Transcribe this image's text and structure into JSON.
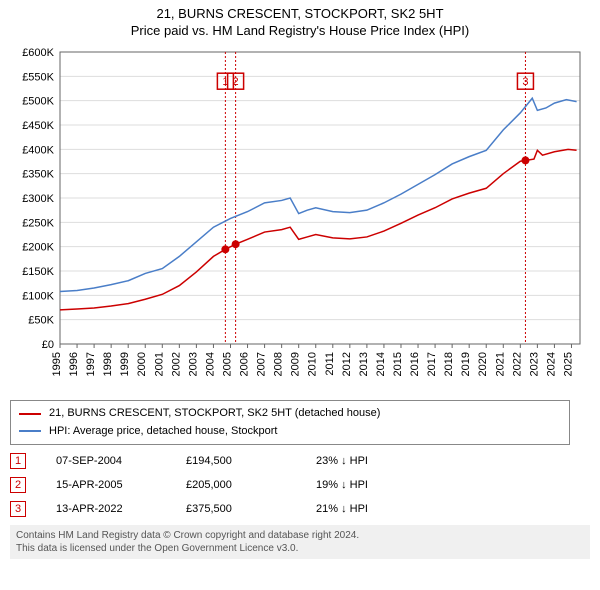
{
  "title_line1": "21, BURNS CRESCENT, STOCKPORT, SK2 5HT",
  "title_line2": "Price paid vs. HM Land Registry's House Price Index (HPI)",
  "chart": {
    "type": "line",
    "background_color": "#ffffff",
    "grid_color": "#dddddd",
    "axis_color": "#666666",
    "x_years": [
      1995,
      1996,
      1997,
      1998,
      1999,
      2000,
      2001,
      2002,
      2003,
      2004,
      2005,
      2006,
      2007,
      2008,
      2009,
      2010,
      2011,
      2012,
      2013,
      2014,
      2015,
      2016,
      2017,
      2018,
      2019,
      2020,
      2021,
      2022,
      2023,
      2024,
      2025
    ],
    "x_min": 1995,
    "x_max": 2025.5,
    "ylim": [
      0,
      600000
    ],
    "ytick_step": 50000,
    "ytick_labels": [
      "£0",
      "£50K",
      "£100K",
      "£150K",
      "£200K",
      "£250K",
      "£300K",
      "£350K",
      "£400K",
      "£450K",
      "£500K",
      "£550K",
      "£600K"
    ],
    "series": [
      {
        "name": "price_paid",
        "color": "#cc0000",
        "width": 1.5,
        "points": [
          [
            1995,
            70000
          ],
          [
            1996,
            72000
          ],
          [
            1997,
            74000
          ],
          [
            1998,
            78000
          ],
          [
            1999,
            83000
          ],
          [
            2000,
            92000
          ],
          [
            2001,
            102000
          ],
          [
            2002,
            120000
          ],
          [
            2003,
            148000
          ],
          [
            2004,
            180000
          ],
          [
            2004.7,
            194500
          ],
          [
            2005.3,
            205000
          ],
          [
            2006,
            215000
          ],
          [
            2007,
            230000
          ],
          [
            2008,
            235000
          ],
          [
            2008.5,
            240000
          ],
          [
            2009,
            215000
          ],
          [
            2009.5,
            220000
          ],
          [
            2010,
            225000
          ],
          [
            2011,
            218000
          ],
          [
            2012,
            216000
          ],
          [
            2013,
            220000
          ],
          [
            2014,
            232000
          ],
          [
            2015,
            248000
          ],
          [
            2016,
            265000
          ],
          [
            2017,
            280000
          ],
          [
            2018,
            298000
          ],
          [
            2019,
            310000
          ],
          [
            2020,
            320000
          ],
          [
            2021,
            350000
          ],
          [
            2022,
            375500
          ],
          [
            2022.8,
            380000
          ],
          [
            2023,
            398000
          ],
          [
            2023.3,
            388000
          ],
          [
            2024,
            395000
          ],
          [
            2024.8,
            400000
          ],
          [
            2025.3,
            398000
          ]
        ]
      },
      {
        "name": "hpi",
        "color": "#4a7ec8",
        "width": 1.5,
        "points": [
          [
            1995,
            108000
          ],
          [
            1996,
            110000
          ],
          [
            1997,
            115000
          ],
          [
            1998,
            122000
          ],
          [
            1999,
            130000
          ],
          [
            2000,
            145000
          ],
          [
            2001,
            155000
          ],
          [
            2002,
            180000
          ],
          [
            2003,
            210000
          ],
          [
            2004,
            240000
          ],
          [
            2005,
            258000
          ],
          [
            2006,
            272000
          ],
          [
            2007,
            290000
          ],
          [
            2008,
            295000
          ],
          [
            2008.5,
            300000
          ],
          [
            2009,
            268000
          ],
          [
            2009.5,
            275000
          ],
          [
            2010,
            280000
          ],
          [
            2011,
            272000
          ],
          [
            2012,
            270000
          ],
          [
            2013,
            275000
          ],
          [
            2014,
            290000
          ],
          [
            2015,
            308000
          ],
          [
            2016,
            328000
          ],
          [
            2017,
            348000
          ],
          [
            2018,
            370000
          ],
          [
            2019,
            385000
          ],
          [
            2020,
            398000
          ],
          [
            2021,
            440000
          ],
          [
            2022,
            475000
          ],
          [
            2022.7,
            505000
          ],
          [
            2023,
            480000
          ],
          [
            2023.5,
            485000
          ],
          [
            2024,
            495000
          ],
          [
            2024.7,
            502000
          ],
          [
            2025.3,
            498000
          ]
        ]
      }
    ],
    "event_markers": [
      {
        "num": "1",
        "year": 2004.7,
        "box_top_y": 540000,
        "dot_series": "price_paid"
      },
      {
        "num": "2",
        "year": 2005.3,
        "box_top_y": 540000,
        "dot_series": "price_paid"
      },
      {
        "num": "3",
        "year": 2022.3,
        "box_top_y": 540000,
        "dot_series": "price_paid"
      }
    ],
    "marker_line_color": "#cc0000",
    "marker_box_stroke": "#cc0000",
    "marker_box_fill": "#ffffff",
    "marker_box_size": 16,
    "marker_dot_radius": 4,
    "marker_dot_color": "#cc0000"
  },
  "legend": {
    "items": [
      {
        "color": "#cc0000",
        "label": "21, BURNS CRESCENT, STOCKPORT, SK2 5HT (detached house)"
      },
      {
        "color": "#4a7ec8",
        "label": "HPI: Average price, detached house, Stockport"
      }
    ]
  },
  "events_table": [
    {
      "num": "1",
      "date": "07-SEP-2004",
      "price": "£194,500",
      "pct": "23% ↓ HPI"
    },
    {
      "num": "2",
      "date": "15-APR-2005",
      "price": "£205,000",
      "pct": "19% ↓ HPI"
    },
    {
      "num": "3",
      "date": "13-APR-2022",
      "price": "£375,500",
      "pct": "21% ↓ HPI"
    }
  ],
  "footer_line1": "Contains HM Land Registry data © Crown copyright and database right 2024.",
  "footer_line2": "This data is licensed under the Open Government Licence v3.0."
}
